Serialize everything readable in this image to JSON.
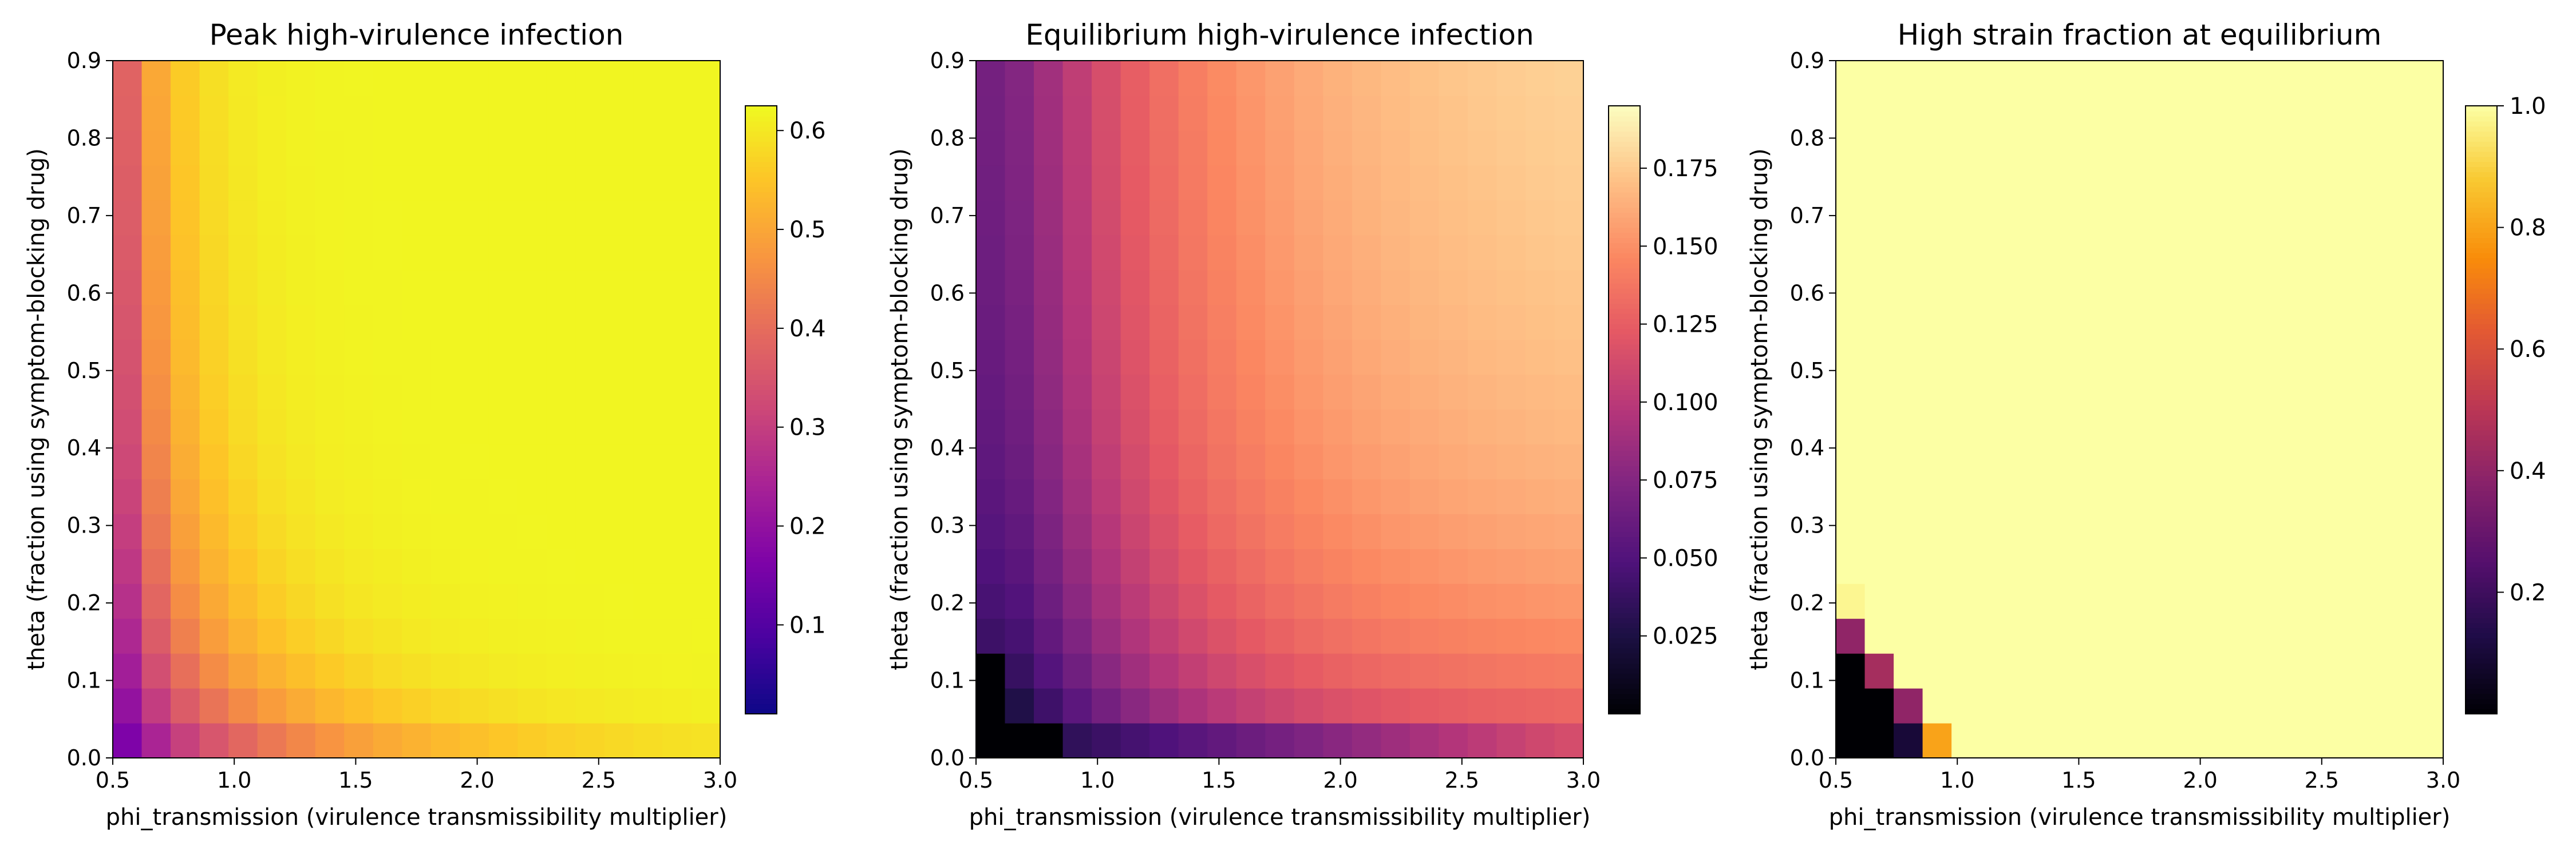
{
  "chart_data": [
    {
      "type": "heatmap",
      "title": "Peak high-virulence infection",
      "xlabel": "phi_transmission (virulence transmissibility multiplier)",
      "ylabel": "theta (fraction using symptom-blocking drug)",
      "xlim": [
        0.5,
        3.0
      ],
      "ylim": [
        0.0,
        0.9
      ],
      "x_ticks": [
        "0.5",
        "1.0",
        "1.5",
        "2.0",
        "2.5",
        "3.0"
      ],
      "y_ticks": [
        "0.0",
        "0.1",
        "0.2",
        "0.3",
        "0.4",
        "0.5",
        "0.6",
        "0.7",
        "0.8",
        "0.9"
      ],
      "grid": false,
      "colormap": "plasma",
      "colorbar_range": [
        0.01,
        0.625
      ],
      "colorbar_ticks": [
        "0.1",
        "0.2",
        "0.3",
        "0.4",
        "0.5",
        "0.6"
      ],
      "grid_shape": {
        "rows": 20,
        "cols": 21
      },
      "value_model": "v(phi, theta) = 0.62 * (1 - exp(-2.2*(phi - 0.45)*(theta + 0.06)*6 / (1 + 1.5*theta)))^0.6 clipped to [0.01, 0.625]"
    },
    {
      "type": "heatmap",
      "title": "Equilibrium high-virulence infection",
      "xlabel": "phi_transmission (virulence transmissibility multiplier)",
      "ylabel": "theta (fraction using symptom-blocking drug)",
      "xlim": [
        0.5,
        3.0
      ],
      "ylim": [
        0.0,
        0.9
      ],
      "x_ticks": [
        "0.5",
        "1.0",
        "1.5",
        "2.0",
        "2.5",
        "3.0"
      ],
      "y_ticks": [
        "0.0",
        "0.1",
        "0.2",
        "0.3",
        "0.4",
        "0.5",
        "0.6",
        "0.7",
        "0.8",
        "0.9"
      ],
      "grid": false,
      "colormap": "magma",
      "colorbar_range": [
        0.0,
        0.195
      ],
      "colorbar_ticks": [
        "0.025",
        "0.050",
        "0.075",
        "0.100",
        "0.125",
        "0.150",
        "0.175"
      ],
      "grid_shape": {
        "rows": 20,
        "cols": 21
      },
      "value_model": "zero where the high strain dies out, otherwise 0.195 * (0.55*(1-exp(-1.4*(phi-0.7))) + 0.45*theta/(theta+0.15)) with low values near the phi and theta axes"
    },
    {
      "type": "heatmap",
      "title": "High strain fraction at equilibrium",
      "xlabel": "phi_transmission (virulence transmissibility multiplier)",
      "ylabel": "theta (fraction using symptom-blocking drug)",
      "xlim": [
        0.5,
        3.0
      ],
      "ylim": [
        0.0,
        0.9
      ],
      "x_ticks": [
        "0.5",
        "1.0",
        "1.5",
        "2.0",
        "2.5",
        "3.0"
      ],
      "y_ticks": [
        "0.0",
        "0.1",
        "0.2",
        "0.3",
        "0.4",
        "0.5",
        "0.6",
        "0.7",
        "0.8",
        "0.9"
      ],
      "grid": false,
      "colormap": "inferno",
      "colorbar_range": [
        0.0,
        1.0
      ],
      "colorbar_ticks": [
        "0.2",
        "0.4",
        "0.6",
        "0.8",
        "1.0"
      ],
      "grid_shape": {
        "rows": 20,
        "cols": 21
      },
      "background_value": 1.0,
      "cells": [
        {
          "col": 0,
          "row": 0,
          "value": 0.0
        },
        {
          "col": 1,
          "row": 0,
          "value": 0.0
        },
        {
          "col": 2,
          "row": 0,
          "value": 0.1
        },
        {
          "col": 3,
          "row": 0,
          "value": 0.8
        },
        {
          "col": 0,
          "row": 1,
          "value": 0.0
        },
        {
          "col": 1,
          "row": 1,
          "value": 0.0
        },
        {
          "col": 2,
          "row": 1,
          "value": 0.4
        },
        {
          "col": 0,
          "row": 2,
          "value": 0.0
        },
        {
          "col": 1,
          "row": 2,
          "value": 0.45
        },
        {
          "col": 0,
          "row": 3,
          "value": 0.4
        },
        {
          "col": 0,
          "row": 4,
          "value": 0.98
        }
      ]
    }
  ]
}
